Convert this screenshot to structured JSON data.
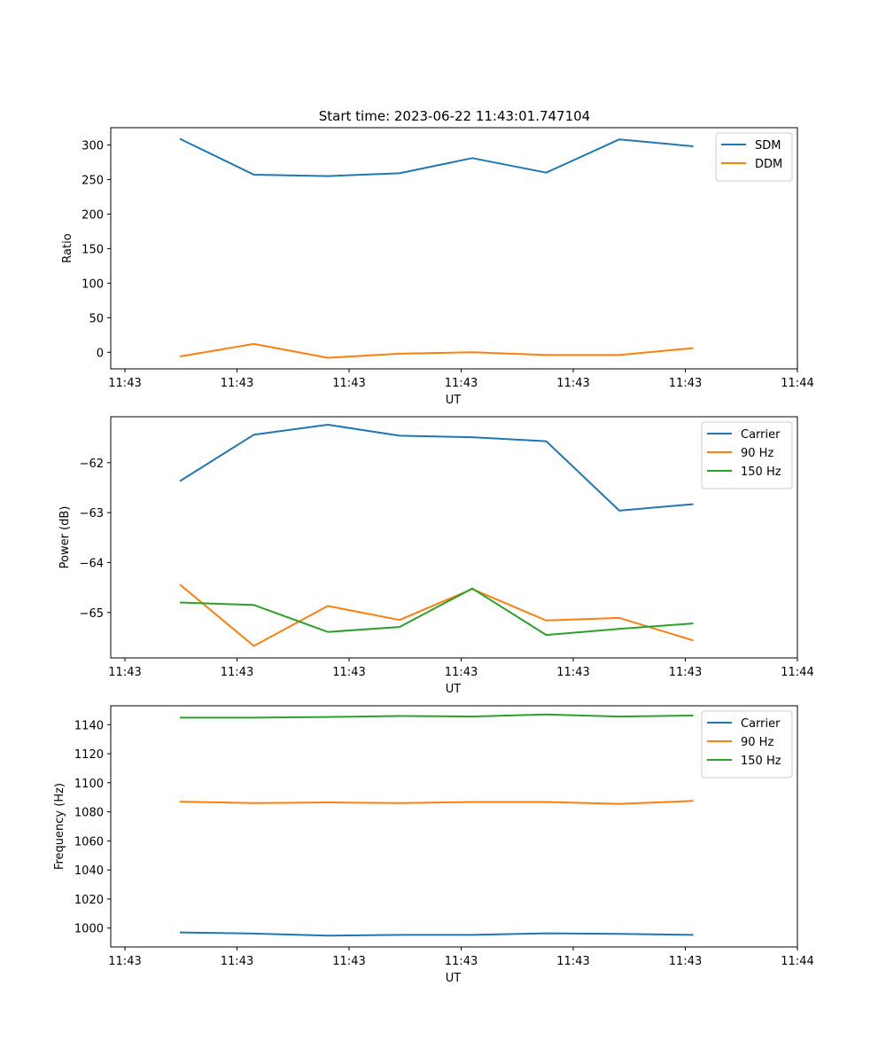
{
  "figure": {
    "title": "Start time: 2023-06-22 11:43:01.747104"
  },
  "chart_data": [
    {
      "type": "line",
      "xlabel": "UT",
      "ylabel": "Ratio",
      "x_tick_labels": [
        "11:43",
        "11:43",
        "11:43",
        "11:43",
        "11:43",
        "11:43",
        "11:44"
      ],
      "ylim": [
        -24,
        325
      ],
      "y_ticks": [
        0,
        50,
        100,
        150,
        200,
        250,
        300
      ],
      "grid": false,
      "legend_position": "top-right",
      "series": [
        {
          "name": "SDM",
          "color": "#1f77b4",
          "values": [
            309,
            257,
            255,
            259,
            281,
            260,
            308,
            298
          ]
        },
        {
          "name": "DDM",
          "color": "#ff7f0e",
          "values": [
            -6,
            12,
            -8,
            -2,
            0,
            -4,
            -4,
            6
          ]
        }
      ]
    },
    {
      "type": "line",
      "xlabel": "UT",
      "ylabel": "Power (dB)",
      "x_tick_labels": [
        "11:43",
        "11:43",
        "11:43",
        "11:43",
        "11:43",
        "11:43",
        "11:44"
      ],
      "ylim": [
        -65.91,
        -61.08
      ],
      "y_ticks": [
        -62,
        -63,
        -64,
        -65
      ],
      "grid": false,
      "legend_position": "top-right",
      "series": [
        {
          "name": "Carrier",
          "color": "#1f77b4",
          "values": [
            -62.37,
            -61.44,
            -61.24,
            -61.46,
            -61.49,
            -61.57,
            -62.96,
            -62.83
          ]
        },
        {
          "name": "90 Hz",
          "color": "#ff7f0e",
          "values": [
            -64.44,
            -65.67,
            -64.87,
            -65.15,
            -64.53,
            -65.16,
            -65.11,
            -65.56
          ]
        },
        {
          "name": "150 Hz",
          "color": "#2ca02c",
          "values": [
            -64.8,
            -64.85,
            -65.39,
            -65.29,
            -64.52,
            -65.45,
            -65.33,
            -65.22
          ]
        }
      ]
    },
    {
      "type": "line",
      "xlabel": "UT",
      "ylabel": "Frequency (Hz)",
      "x_tick_labels": [
        "11:43",
        "11:43",
        "11:43",
        "11:43",
        "11:43",
        "11:43",
        "11:44"
      ],
      "ylim": [
        987,
        1153
      ],
      "y_ticks": [
        1000,
        1020,
        1040,
        1060,
        1080,
        1100,
        1120,
        1140
      ],
      "grid": false,
      "legend_position": "top-right",
      "series": [
        {
          "name": "Carrier",
          "color": "#1f77b4",
          "values": [
            997,
            996.2,
            994.8,
            995.3,
            995.3,
            996.4,
            996,
            995.3
          ]
        },
        {
          "name": "90 Hz",
          "color": "#ff7f0e",
          "values": [
            1087,
            1086,
            1086.5,
            1086,
            1086.8,
            1086.8,
            1085.5,
            1087.5
          ]
        },
        {
          "name": "150 Hz",
          "color": "#2ca02c",
          "values": [
            1144.8,
            1144.8,
            1145.3,
            1146,
            1145.6,
            1147,
            1145.6,
            1146.3
          ]
        }
      ]
    }
  ]
}
